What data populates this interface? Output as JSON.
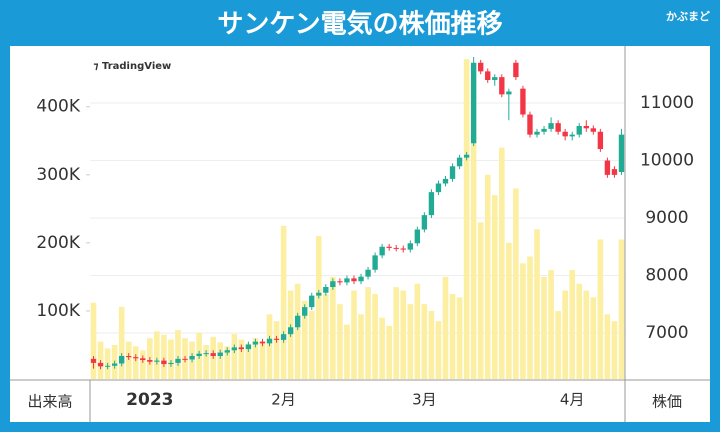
{
  "chart_data": {
    "type": "candlestick",
    "title": "サンケン電気の株価推移",
    "brand": "かぶまど",
    "watermark": "TradingView",
    "ylabel": "出来高",
    "y2label": "株価",
    "categories": [
      null,
      null,
      null,
      null,
      null,
      null,
      null,
      null,
      "2023",
      null,
      null,
      null,
      null,
      null,
      null,
      null,
      null,
      null,
      null,
      null,
      null,
      null,
      null,
      null,
      null,
      null,
      null,
      "2月",
      null,
      null,
      null,
      null,
      null,
      null,
      null,
      null,
      null,
      null,
      null,
      null,
      null,
      null,
      null,
      null,
      null,
      null,
      null,
      "3月",
      null,
      null,
      null,
      null,
      null,
      null,
      null,
      null,
      null,
      null,
      null,
      null,
      null,
      null,
      null,
      null,
      null,
      null,
      null,
      null,
      "4月",
      null,
      null,
      null,
      null,
      null,
      null,
      null
    ],
    "open": [
      6550,
      6480,
      6420,
      6430,
      6470,
      6600,
      6580,
      6560,
      6530,
      6500,
      6520,
      6460,
      6480,
      6550,
      6540,
      6600,
      6640,
      6650,
      6600,
      6660,
      6700,
      6750,
      6720,
      6800,
      6850,
      6820,
      6900,
      6880,
      6980,
      7100,
      7300,
      7450,
      7650,
      7700,
      7800,
      7900,
      7880,
      7950,
      7900,
      7980,
      8100,
      8350,
      8500,
      8480,
      8470,
      8450,
      8560,
      8800,
      9050,
      9450,
      9600,
      9680,
      9900,
      10050,
      10300,
      11700,
      11550,
      11400,
      11450,
      11150,
      11700,
      11250,
      10800,
      10450,
      10500,
      10550,
      10650,
      10500,
      10420,
      10450,
      10600,
      10560,
      10500,
      10000,
      9850,
      9800
    ],
    "high": [
      6600,
      6530,
      6480,
      6520,
      6650,
      6650,
      6630,
      6610,
      6580,
      6570,
      6570,
      6530,
      6600,
      6600,
      6650,
      6690,
      6700,
      6700,
      6710,
      6750,
      6800,
      6800,
      6850,
      6900,
      6900,
      6950,
      6950,
      7030,
      7150,
      7350,
      7500,
      7700,
      7750,
      7850,
      7950,
      7950,
      8000,
      8000,
      8030,
      8150,
      8400,
      8550,
      8550,
      8530,
      8520,
      8610,
      8850,
      9100,
      9500,
      9650,
      9730,
      9950,
      10100,
      10150,
      11800,
      11750,
      11600,
      11500,
      11500,
      11250,
      11750,
      11300,
      10850,
      10550,
      10600,
      10750,
      10700,
      10550,
      10500,
      10650,
      10700,
      10610,
      10550,
      10050,
      9900,
      10550
    ],
    "low": [
      6380,
      6370,
      6370,
      6380,
      6420,
      6530,
      6510,
      6480,
      6450,
      6450,
      6410,
      6410,
      6430,
      6490,
      6490,
      6550,
      6590,
      6550,
      6550,
      6610,
      6650,
      6670,
      6670,
      6750,
      6770,
      6770,
      6830,
      6830,
      6930,
      7050,
      7250,
      7400,
      7600,
      7650,
      7750,
      7830,
      7830,
      7850,
      7850,
      7930,
      8050,
      8300,
      8430,
      8420,
      8400,
      8400,
      8510,
      8750,
      9000,
      9400,
      9550,
      9630,
      9850,
      10000,
      10250,
      11500,
      11350,
      11300,
      11100,
      10700,
      11400,
      10750,
      10400,
      10400,
      10450,
      10500,
      10450,
      10350,
      10350,
      10400,
      10500,
      10450,
      10150,
      9700,
      9700,
      9750
    ],
    "close": [
      6480,
      6420,
      6430,
      6470,
      6600,
      6580,
      6560,
      6530,
      6500,
      6520,
      6460,
      6480,
      6550,
      6540,
      6600,
      6640,
      6650,
      6600,
      6660,
      6700,
      6750,
      6720,
      6800,
      6850,
      6820,
      6900,
      6880,
      6980,
      7100,
      7300,
      7450,
      7650,
      7700,
      7800,
      7900,
      7880,
      7950,
      7900,
      7980,
      8100,
      8350,
      8500,
      8480,
      8470,
      8450,
      8560,
      8800,
      9050,
      9450,
      9600,
      9680,
      9900,
      10050,
      10100,
      11700,
      11550,
      11400,
      11450,
      11150,
      11200,
      11450,
      10800,
      10450,
      10500,
      10550,
      10650,
      10500,
      10420,
      10450,
      10600,
      10560,
      10500,
      10200,
      9750,
      9750,
      10450
    ],
    "volume": [
      112000,
      55000,
      45000,
      50000,
      106000,
      55000,
      48000,
      42000,
      60000,
      70000,
      65000,
      58000,
      72000,
      60000,
      55000,
      68000,
      50000,
      62000,
      54000,
      48000,
      66000,
      58000,
      52000,
      60000,
      55000,
      95000,
      85000,
      225000,
      130000,
      140000,
      115000,
      100000,
      210000,
      125000,
      150000,
      110000,
      80000,
      130000,
      95000,
      135000,
      125000,
      90000,
      78000,
      135000,
      130000,
      110000,
      140000,
      110000,
      100000,
      85000,
      150000,
      125000,
      120000,
      470000,
      440000,
      230000,
      300000,
      270000,
      340000,
      200000,
      280000,
      170000,
      180000,
      220000,
      150000,
      160000,
      100000,
      130000,
      160000,
      140000,
      130000,
      120000,
      205000,
      95000,
      85000,
      205000
    ],
    "up_color": "#22ab94",
    "down_color": "#f23645",
    "volume_color": "#fcefa2",
    "ylim": [
      0,
      476000
    ],
    "yticks": [
      {
        "value": 100000,
        "label": "100K"
      },
      {
        "value": 200000,
        "label": "200K"
      },
      {
        "value": 300000,
        "label": "300K"
      },
      {
        "value": 400000,
        "label": "400K"
      }
    ],
    "y2lim": [
      6200,
      11835
    ],
    "y2ticks": [
      7000,
      8000,
      9000,
      10000,
      11000
    ],
    "grid": true
  }
}
